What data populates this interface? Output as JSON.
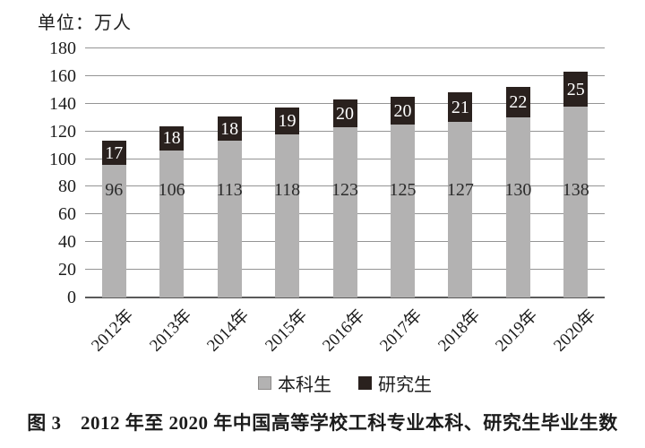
{
  "unit_label": "单位：万人",
  "caption": "图 3　2012 年至 2020 年中国高等学校工科专业本科、研究生毕业生数",
  "legend": {
    "items": [
      {
        "label": "本科生",
        "color": "#b3b2b2",
        "border": "#8c8a89"
      },
      {
        "label": "研究生",
        "color": "#2a211e",
        "border": "#2a211e"
      }
    ]
  },
  "chart_data": {
    "type": "bar",
    "stacked": true,
    "title": "2012年至2020年中国高等学校工科专业本科、研究生毕业生数",
    "ylabel": "单位：万人",
    "xlabel": "",
    "categories": [
      "2012年",
      "2013年",
      "2014年",
      "2015年",
      "2016年",
      "2017年",
      "2018年",
      "2019年",
      "2020年"
    ],
    "series": [
      {
        "name": "本科生",
        "color": "#b3b2b2",
        "values": [
          96,
          106,
          113,
          118,
          123,
          125,
          127,
          130,
          138
        ]
      },
      {
        "name": "研究生",
        "color": "#2a211e",
        "values": [
          17,
          18,
          18,
          19,
          20,
          20,
          21,
          22,
          25
        ]
      }
    ],
    "totals": [
      113,
      124,
      131,
      137,
      143,
      145,
      148,
      152,
      163
    ],
    "ylim": [
      0,
      180
    ],
    "ytick_step": 20,
    "grid": true,
    "legend_position": "bottom"
  },
  "colors": {
    "background": "#ffffff",
    "gridline": "#949494",
    "axis_line": "#5a5a5a",
    "text": "#1c1c1c",
    "under_value_text": "#2b2b2b",
    "grad_value_text": "#ffffff"
  }
}
